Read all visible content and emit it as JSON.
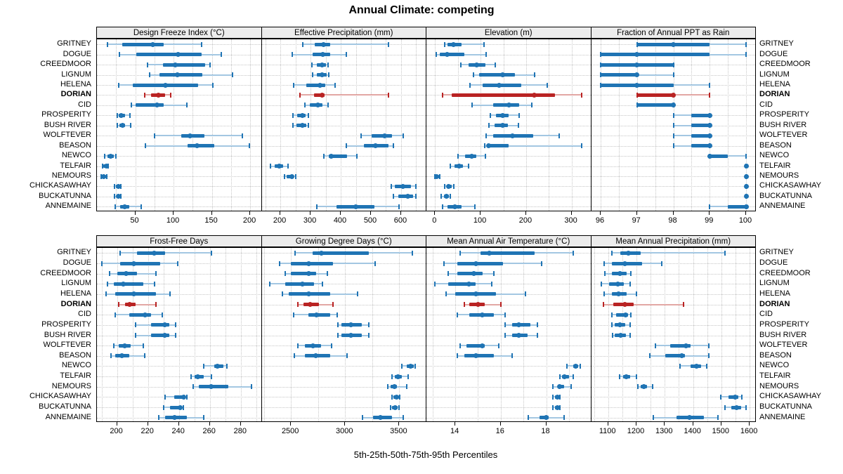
{
  "title": "Annual Climate: competing",
  "caption": "5th-25th-50th-75th-95th Percentiles",
  "colors": {
    "series": "#1f74b4",
    "series_light": "#a3c7e2",
    "highlight": "#b92323",
    "highlight_light": "#e2a7a4",
    "grid": "#c6c6c6",
    "strip_bg": "#ececec",
    "border": "#000000"
  },
  "sites": [
    "GRITNEY",
    "DOGUE",
    "CREEDMOOR",
    "LIGNUM",
    "HELENA",
    "DORIAN",
    "CID",
    "PROSPERITY",
    "BUSH RIVER",
    "WOLFTEVER",
    "BEASON",
    "NEWCO",
    "TELFAIR",
    "NEMOURS",
    "CHICKASAWHAY",
    "BUCKATUNNA",
    "ANNEMAINE"
  ],
  "highlight_site": "DORIAN",
  "chart_data": {
    "type": "dotplot-percentile-ranges",
    "percentiles": [
      5,
      25,
      50,
      75,
      95
    ],
    "legend_note": "thin line = 5th-95th, thick bar = 25th-75th, dot = median; red row = DORIAN (highlighted)",
    "panels": [
      {
        "title": "Design Freeze Index (°C)",
        "ticks": [
          50,
          100,
          150,
          200
        ],
        "xlim": [
          0,
          215
        ],
        "values": [
          [
            14,
            33,
            73,
            87,
            137
          ],
          [
            29,
            51,
            106,
            137,
            162
          ],
          [
            66,
            86,
            102,
            141,
            148
          ],
          [
            69,
            82,
            105,
            138,
            177
          ],
          [
            28,
            47,
            89,
            132,
            151
          ],
          [
            62,
            71,
            80,
            89,
            96
          ],
          [
            45,
            50,
            78,
            87,
            117
          ],
          [
            27,
            28,
            32,
            37,
            43
          ],
          [
            27,
            29,
            33,
            37,
            44
          ],
          [
            75,
            110,
            121,
            140,
            190
          ],
          [
            63,
            118,
            131,
            153,
            199
          ],
          [
            10,
            14,
            18,
            22,
            25
          ],
          [
            7,
            8,
            12,
            14,
            15
          ],
          [
            5,
            6,
            9,
            12,
            13
          ],
          [
            23,
            25,
            28,
            30,
            31
          ],
          [
            23,
            26,
            28,
            30,
            31
          ],
          [
            24,
            30,
            36,
            42,
            58
          ]
        ]
      },
      {
        "title": "Effective Precipitation (mm)",
        "ticks": [
          200,
          300,
          400,
          500,
          600
        ],
        "xlim": [
          138,
          684
        ],
        "values": [
          [
            273,
            313,
            343,
            366,
            559
          ],
          [
            239,
            307,
            340,
            366,
            419
          ],
          [
            305,
            321,
            339,
            352,
            358
          ],
          [
            306,
            321,
            339,
            354,
            361
          ],
          [
            243,
            286,
            330,
            348,
            381
          ],
          [
            265,
            312,
            337,
            346,
            557
          ],
          [
            282,
            298,
            323,
            340,
            358
          ],
          [
            241,
            255,
            272,
            284,
            292
          ],
          [
            241,
            253,
            272,
            285,
            293
          ],
          [
            468,
            502,
            546,
            571,
            607
          ],
          [
            419,
            477,
            515,
            559,
            574
          ],
          [
            343,
            360,
            368,
            422,
            454
          ],
          [
            167,
            182,
            195,
            208,
            226
          ],
          [
            213,
            221,
            237,
            243,
            251
          ],
          [
            567,
            580,
            607,
            632,
            649
          ],
          [
            574,
            590,
            623,
            639,
            650
          ],
          [
            321,
            387,
            450,
            511,
            593
          ]
        ]
      },
      {
        "title": "Elevation (m)",
        "ticks": [
          0,
          100,
          200,
          300
        ],
        "xlim": [
          -19,
          343
        ],
        "values": [
          [
            21,
            27,
            40,
            58,
            107
          ],
          [
            2,
            10,
            26,
            64,
            112
          ],
          [
            57,
            73,
            92,
            110,
            132
          ],
          [
            84,
            97,
            149,
            175,
            219
          ],
          [
            76,
            105,
            141,
            189,
            246
          ],
          [
            16,
            36,
            218,
            263,
            322
          ],
          [
            82,
            128,
            162,
            185,
            213
          ],
          [
            121,
            134,
            149,
            162,
            184
          ],
          [
            119,
            131,
            148,
            160,
            183
          ],
          [
            112,
            128,
            170,
            216,
            272
          ],
          [
            109,
            114,
            118,
            162,
            322
          ],
          [
            51,
            66,
            80,
            90,
            110
          ],
          [
            33,
            43,
            52,
            62,
            74
          ],
          [
            0,
            1,
            3,
            8,
            10
          ],
          [
            21,
            25,
            30,
            36,
            41
          ],
          [
            14,
            19,
            25,
            31,
            34
          ],
          [
            17,
            28,
            43,
            58,
            87
          ]
        ]
      },
      {
        "title": "Fraction of Annual PPT as Rain",
        "ticks": [
          96,
          97,
          98,
          99,
          100
        ],
        "xlim": [
          95.74,
          100.27
        ],
        "values": [
          [
            97,
            97,
            98,
            99,
            100
          ],
          [
            96,
            96,
            97,
            99,
            100
          ],
          [
            96,
            96,
            97,
            98,
            98
          ],
          [
            96,
            96,
            97,
            97,
            98
          ],
          [
            96,
            96,
            97,
            98,
            99
          ],
          [
            97,
            97,
            98,
            98,
            99
          ],
          [
            97,
            97,
            98,
            98,
            98
          ],
          [
            98,
            98.5,
            99,
            99,
            99
          ],
          [
            98,
            98.5,
            99,
            99,
            99
          ],
          [
            98,
            98.5,
            99,
            99,
            99
          ],
          [
            98,
            98.5,
            99,
            99,
            99
          ],
          [
            99,
            99,
            99,
            99.5,
            100
          ],
          [
            100,
            100,
            100,
            100,
            100
          ],
          [
            100,
            100,
            100,
            100,
            100
          ],
          [
            100,
            100,
            100,
            100,
            100
          ],
          [
            100,
            100,
            100,
            100,
            100
          ],
          [
            99,
            99.5,
            100,
            100,
            100
          ]
        ]
      },
      {
        "title": "Frost-Free Days",
        "ticks": [
          200,
          220,
          240,
          260,
          280
        ],
        "xlim": [
          187,
          293.5
        ],
        "values": [
          [
            202,
            213,
            224,
            231,
            261
          ],
          [
            190,
            202,
            211,
            228,
            239
          ],
          [
            195,
            200,
            206,
            213,
            225
          ],
          [
            194,
            198,
            204,
            217,
            224
          ],
          [
            193,
            199,
            211,
            225,
            234
          ],
          [
            201,
            205,
            208,
            212,
            225
          ],
          [
            199,
            208,
            218,
            222,
            229
          ],
          [
            212,
            222,
            231,
            234,
            238
          ],
          [
            212,
            222,
            231,
            234,
            238
          ],
          [
            198,
            201,
            205,
            209,
            217
          ],
          [
            196,
            199,
            203,
            208,
            218
          ],
          [
            256,
            263,
            265,
            269,
            271
          ],
          [
            248,
            250,
            252,
            256,
            261
          ],
          [
            249,
            253,
            261,
            272,
            287
          ],
          [
            231,
            237,
            243,
            244,
            245
          ],
          [
            230,
            234,
            241,
            242,
            243
          ],
          [
            227,
            231,
            237,
            245,
            256
          ]
        ]
      },
      {
        "title": "Growing Degree Days (°C)",
        "ticks": [
          2500,
          3000,
          3500
        ],
        "xlim": [
          2230,
          3750
        ],
        "values": [
          [
            2539,
            2700,
            2783,
            3217,
            3619
          ],
          [
            2396,
            2496,
            2663,
            2891,
            3278
          ],
          [
            2446,
            2496,
            2663,
            2735,
            2837
          ],
          [
            2304,
            2446,
            2604,
            2713,
            2793
          ],
          [
            2424,
            2478,
            2663,
            2859,
            3113
          ],
          [
            2561,
            2613,
            2674,
            2761,
            2887
          ],
          [
            2526,
            2663,
            2735,
            2865,
            2924
          ],
          [
            2935,
            2967,
            3054,
            3157,
            3217
          ],
          [
            2935,
            2965,
            3052,
            3155,
            3215
          ],
          [
            2565,
            2630,
            2700,
            2778,
            2874
          ],
          [
            2533,
            2630,
            2728,
            2865,
            3018
          ],
          [
            3526,
            3569,
            3604,
            3634,
            3647
          ],
          [
            3430,
            3456,
            3489,
            3521,
            3582
          ],
          [
            3391,
            3417,
            3452,
            3478,
            3565
          ],
          [
            3430,
            3445,
            3474,
            3495,
            3504
          ],
          [
            3417,
            3434,
            3461,
            3482,
            3500
          ],
          [
            3163,
            3256,
            3326,
            3434,
            3539
          ]
        ]
      },
      {
        "title": "Mean Annual Air Temperature (°C)",
        "ticks": [
          14,
          16,
          18
        ],
        "xlim": [
          12.73,
          19.98
        ],
        "values": [
          [
            14.2,
            15.1,
            15.5,
            17.5,
            19.2
          ],
          [
            13.5,
            14.1,
            14.9,
            16.1,
            17.8
          ],
          [
            13.7,
            14.1,
            14.8,
            15.2,
            15.7
          ],
          [
            13.1,
            13.7,
            14.6,
            14.9,
            15.6
          ],
          [
            13.6,
            14.0,
            14.9,
            15.8,
            17.1
          ],
          [
            14.4,
            14.6,
            15.0,
            15.3,
            16.0
          ],
          [
            14.1,
            14.6,
            15.2,
            15.7,
            16.2
          ],
          [
            16.2,
            16.5,
            16.8,
            17.3,
            17.6
          ],
          [
            16.2,
            16.5,
            16.8,
            17.2,
            17.6
          ],
          [
            14.2,
            14.5,
            15.2,
            15.3,
            15.9
          ],
          [
            14.1,
            14.4,
            14.9,
            15.7,
            16.5
          ],
          [
            18.9,
            19.2,
            19.3,
            19.4,
            19.5
          ],
          [
            18.6,
            18.7,
            18.8,
            19.0,
            19.2
          ],
          [
            18.3,
            18.5,
            18.6,
            18.8,
            19.1
          ],
          [
            18.3,
            18.4,
            18.5,
            18.6,
            18.6
          ],
          [
            18.3,
            18.4,
            18.5,
            18.6,
            18.6
          ],
          [
            17.2,
            17.7,
            18.0,
            18.1,
            18.8
          ]
        ]
      },
      {
        "title": "Mean Annual Precipitation (mm)",
        "ticks": [
          1100,
          1200,
          1300,
          1400,
          1500,
          1600
        ],
        "xlim": [
          1040,
          1622
        ],
        "values": [
          [
            1114,
            1143,
            1172,
            1215,
            1512
          ],
          [
            1087,
            1114,
            1158,
            1221,
            1290
          ],
          [
            1089,
            1114,
            1141,
            1166,
            1180
          ],
          [
            1075,
            1103,
            1133,
            1155,
            1177
          ],
          [
            1085,
            1112,
            1137,
            1166,
            1199
          ],
          [
            1083,
            1117,
            1158,
            1191,
            1367
          ],
          [
            1112,
            1128,
            1161,
            1169,
            1180
          ],
          [
            1114,
            1122,
            1141,
            1161,
            1177
          ],
          [
            1115,
            1124,
            1143,
            1162,
            1178
          ],
          [
            1268,
            1320,
            1375,
            1392,
            1456
          ],
          [
            1248,
            1301,
            1359,
            1372,
            1456
          ],
          [
            1353,
            1392,
            1413,
            1429,
            1448
          ],
          [
            1141,
            1153,
            1163,
            1177,
            1201
          ],
          [
            1205,
            1215,
            1227,
            1238,
            1256
          ],
          [
            1498,
            1526,
            1548,
            1561,
            1573
          ],
          [
            1512,
            1534,
            1553,
            1569,
            1586
          ],
          [
            1260,
            1342,
            1388,
            1438,
            1487
          ]
        ]
      }
    ]
  }
}
